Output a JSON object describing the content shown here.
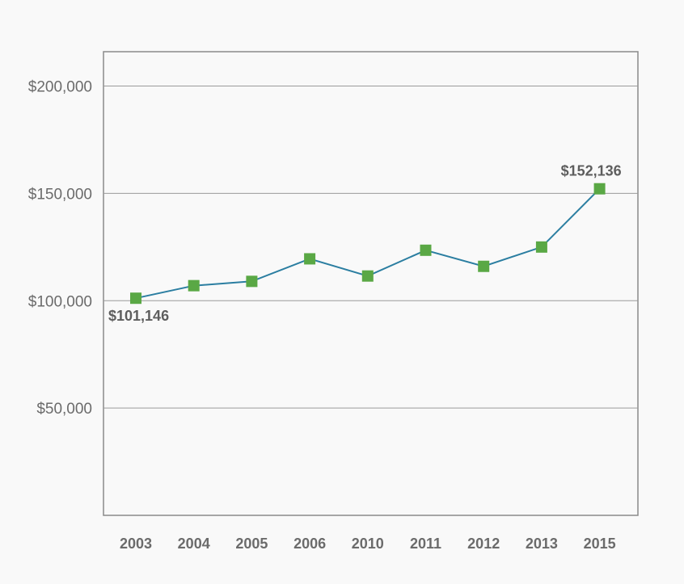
{
  "chart_data": {
    "type": "line",
    "title": "",
    "xlabel": "",
    "ylabel": "",
    "categories": [
      "2003",
      "2004",
      "2005",
      "2006",
      "2010",
      "2011",
      "2012",
      "2013",
      "2015"
    ],
    "series": [
      {
        "values": [
          101146,
          107000,
          109000,
          119500,
          111500,
          123500,
          116000,
          125000,
          152136
        ]
      }
    ],
    "ylim": [
      0,
      216000
    ],
    "yticks": [
      50000,
      100000,
      150000,
      200000
    ],
    "ytick_labels": [
      "$50,000",
      "$100,000",
      "$150,000",
      "$200,000"
    ],
    "data_labels": [
      {
        "index": 0,
        "text": "$101,146"
      },
      {
        "index": 8,
        "text": "$152,136"
      }
    ],
    "grid": true,
    "legend": "none",
    "colors": {
      "line": "#2b7ea1",
      "marker": "#5aa845",
      "axis": "#8a8a8a",
      "grid": "#9a9a9a",
      "background": "#f9f9f9"
    }
  }
}
